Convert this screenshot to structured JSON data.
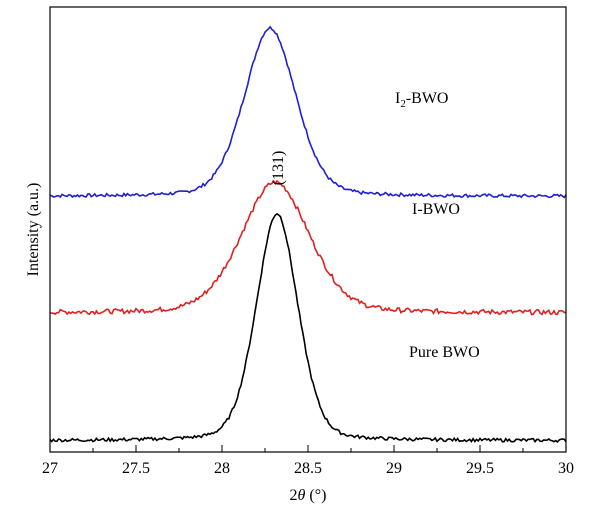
{
  "chart_data": {
    "type": "line",
    "xlabel_prefix": "2",
    "xlabel_symbol": "θ",
    "xlabel_suffix": " (°)",
    "ylabel": "Intensity (a.u.)",
    "xlim": [
      27,
      30
    ],
    "xticks": [
      "27",
      "27.5",
      "28",
      "28.5",
      "29",
      "29.5",
      "30"
    ],
    "yticks_shown": false,
    "grid": false,
    "legend": "none",
    "annotation": "(131)",
    "series": [
      {
        "name": "I2-BWO",
        "label_main": "I",
        "label_sub": "2",
        "label_tail": "-BWO",
        "color": "#1f1fd6",
        "baseline": 0.05,
        "offset": 2.55,
        "peak_x": 28.28,
        "peak_height": 1.78,
        "sigma": 0.155
      },
      {
        "name": "I-BWO",
        "label": "I-BWO",
        "color": "#e02020",
        "baseline": 0.05,
        "offset": 1.32,
        "peak_x": 28.31,
        "peak_height": 1.38,
        "sigma": 0.205
      },
      {
        "name": "Pure BWO",
        "label": "Pure BWO",
        "color": "#000000",
        "baseline": 0.02,
        "offset": 0.0,
        "peak_x": 28.32,
        "peak_height": 2.4,
        "sigma": 0.125
      }
    ],
    "ylim": [
      -0.1,
      4.6
    ]
  }
}
